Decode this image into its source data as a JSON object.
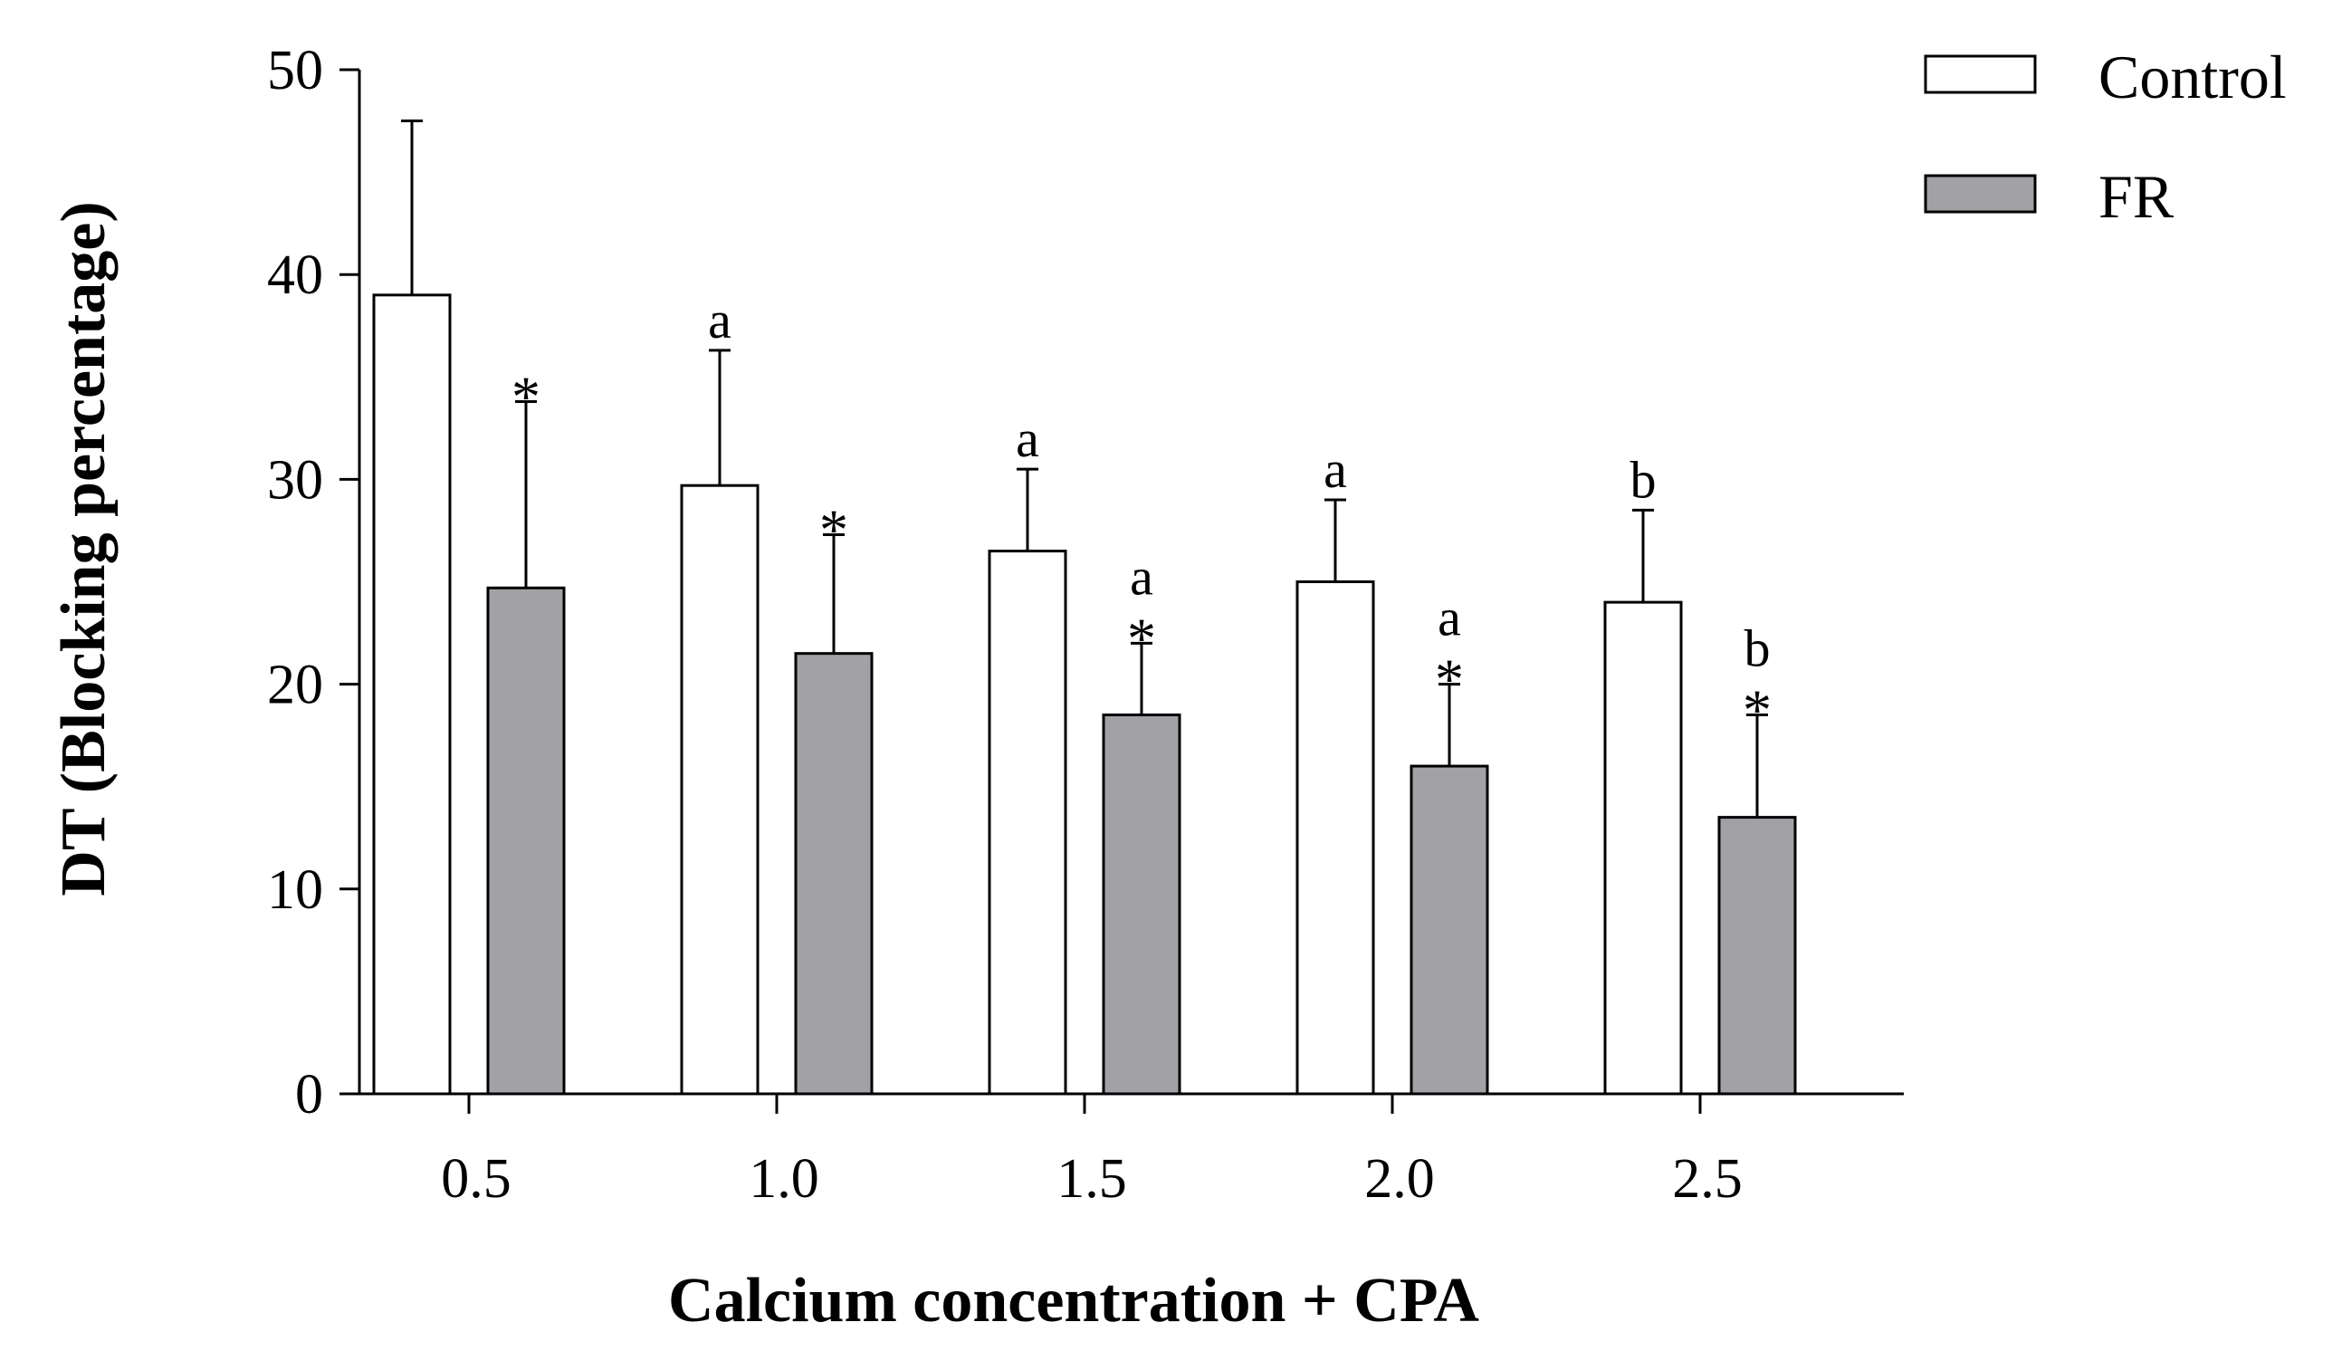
{
  "chart_data": {
    "type": "bar",
    "title": "",
    "xlabel": "Calcium concentration + CPA",
    "ylabel": "DT (Blocking percentage)",
    "categories": [
      "0.5",
      "1.0",
      "1.5",
      "2.0",
      "2.5"
    ],
    "ylim": [
      0,
      50
    ],
    "yticks": [
      "0",
      "10",
      "20",
      "30",
      "40",
      "50"
    ],
    "legend_position": "top-right",
    "series": [
      {
        "name": "Control",
        "color": "#ffffff",
        "values": [
          39.0,
          29.7,
          26.5,
          25.0,
          24.0
        ],
        "errors": [
          8.5,
          6.6,
          4.0,
          4.0,
          4.5
        ],
        "annotations": [
          "",
          "a",
          "a",
          "a",
          "b"
        ]
      },
      {
        "name": "FR",
        "color": "#a2a2a6",
        "values": [
          24.7,
          21.5,
          18.5,
          16.0,
          13.5
        ],
        "errors": [
          9.1,
          5.8,
          3.5,
          4.0,
          5.0
        ],
        "annotations": [
          "*",
          "*",
          "a *",
          "a *",
          "b *"
        ]
      }
    ]
  }
}
